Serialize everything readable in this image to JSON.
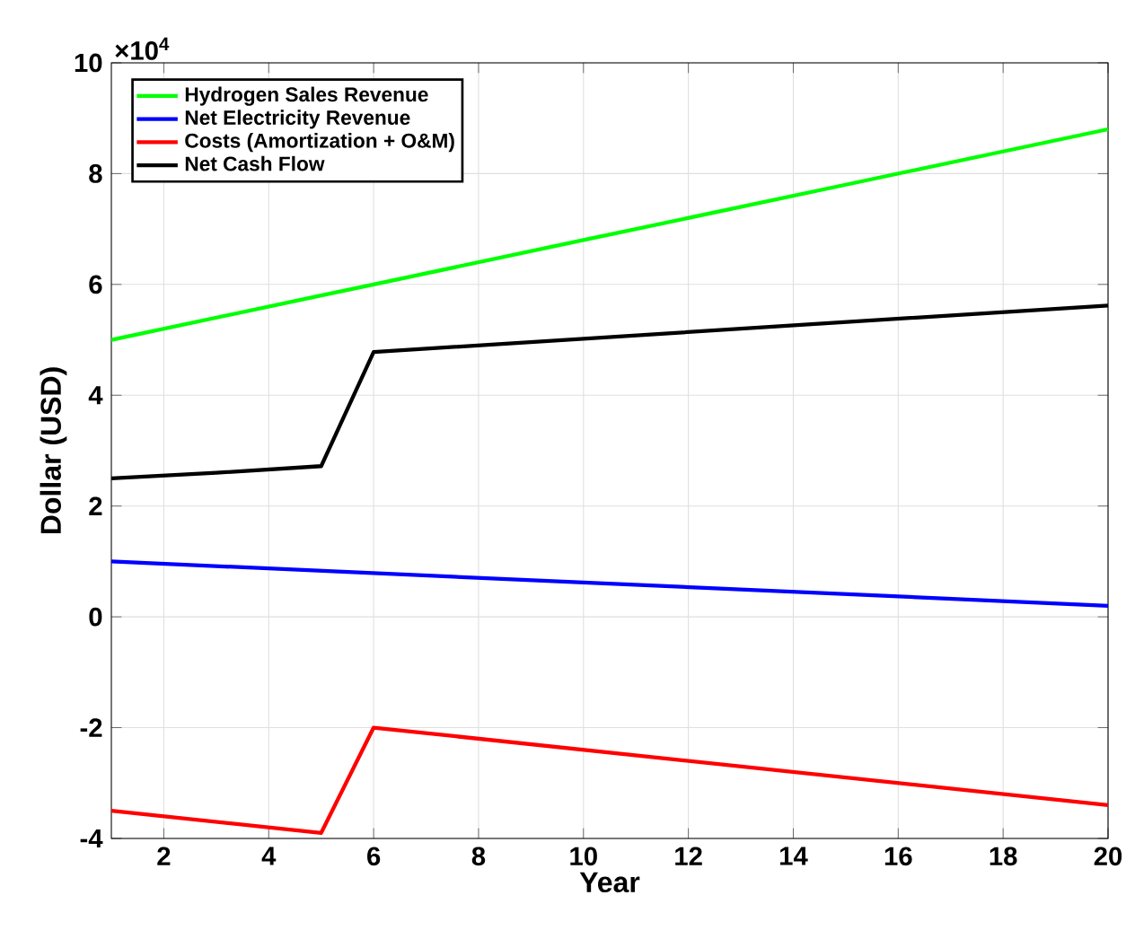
{
  "chart_data": {
    "type": "line",
    "xlabel": "Year",
    "ylabel": "Dollar (USD)",
    "annotations": [
      "×10$^{4}$"
    ],
    "xlim": [
      1,
      20
    ],
    "xticks": [
      2,
      4,
      6,
      8,
      10,
      12,
      14,
      16,
      18,
      20
    ],
    "ylim": [
      -4,
      10
    ],
    "yticks": [
      -4,
      -2,
      0,
      2,
      4,
      6,
      8,
      10
    ],
    "grid": true,
    "legend": "top left",
    "line_style": "solid",
    "series": [
      {
        "name": "Hydrogen Sales Revenue",
        "color": "#00ff00",
        "x": [
          1,
          5,
          6,
          10,
          15,
          20
        ],
        "values": [
          5.0,
          5.8,
          6.0,
          6.8,
          7.8,
          8.8
        ]
      },
      {
        "name": "Net Electricity Revenue",
        "color": "#0000ff",
        "x": [
          1,
          10,
          20
        ],
        "values": [
          1.0,
          0.62,
          0.2
        ]
      },
      {
        "name": "Costs (Amortization + O&M)",
        "color": "#ff0000",
        "x": [
          1,
          5,
          6,
          20
        ],
        "values": [
          -3.5,
          -3.9,
          -2.0,
          -3.4
        ]
      },
      {
        "name": "Net Cash Flow",
        "color": "#000000",
        "x": [
          1,
          3,
          5,
          6,
          20
        ],
        "values": [
          2.5,
          2.6,
          2.72,
          4.78,
          5.62
        ]
      }
    ]
  }
}
